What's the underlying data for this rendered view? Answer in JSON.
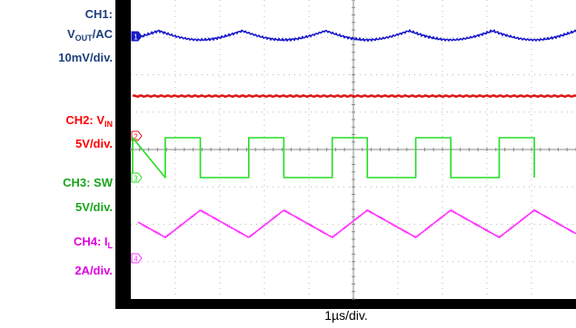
{
  "chart_data": {
    "type": "line",
    "title": "",
    "xlabel": "1µs/div.",
    "channels": [
      {
        "id": "1",
        "name_prefix": "CH1:",
        "name_main": "V",
        "name_sub": "OUT",
        "name_suffix": "/AC",
        "scale": "10mV/div.",
        "label_color": "#1f3f7a",
        "trace_color": "#1a1acc",
        "waveform": "ripple",
        "cycles": 5.3
      },
      {
        "id": "2",
        "name_prefix": "CH2: V",
        "name_main": "",
        "name_sub": "IN",
        "name_suffix": "",
        "scale": "5V/div.",
        "label_color": "#ff0000",
        "trace_color": "#e01515",
        "waveform": "dc",
        "cycles": 0
      },
      {
        "id": "3",
        "name_prefix": "CH3: SW",
        "name_main": "",
        "name_sub": "",
        "name_suffix": "",
        "scale": "5V/div.",
        "label_color": "#1aa51a",
        "trace_color": "#22dd22",
        "waveform": "pulse",
        "cycles": 10.6,
        "duty": 0.42
      },
      {
        "id": "4",
        "name_prefix": "CH4: I",
        "name_main": "",
        "name_sub": "L",
        "name_suffix": "",
        "scale": "2A/div.",
        "label_color": "#e000e0",
        "trace_color": "#ff33ff",
        "waveform": "triangle",
        "cycles": 10.6
      }
    ]
  }
}
